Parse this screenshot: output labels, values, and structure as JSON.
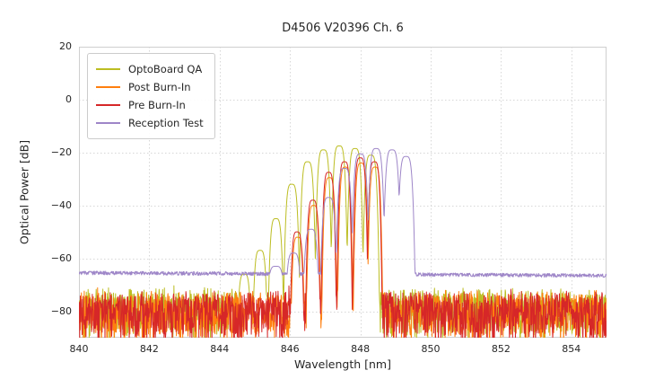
{
  "chart_data": {
    "type": "line",
    "title": "D4506 V20396 Ch. 6",
    "xlabel": "Wavelength [nm]",
    "ylabel": "Optical Power [dB]",
    "xlim": [
      840,
      855
    ],
    "ylim": [
      -90,
      20
    ],
    "xticks": [
      840,
      842,
      844,
      846,
      848,
      850,
      852,
      854
    ],
    "xtick_labels": [
      "840",
      "842",
      "844",
      "846",
      "848",
      "850",
      "852",
      "854"
    ],
    "yticks": [
      20,
      0,
      -20,
      -40,
      -60,
      -80
    ],
    "ytick_labels": [
      "20",
      "0",
      "−20",
      "−40",
      "−60",
      "−80"
    ],
    "grid": true,
    "grid_style": "dotted",
    "legend_position": "upper left",
    "mode_dip_dB": 25,
    "sample_step_nm": 0.01,
    "series": [
      {
        "name": "OptoBoard QA",
        "color": "#bcbd22",
        "signal_band_nm": [
          844.5,
          848.6
        ],
        "peak_power_dB": -17.5,
        "noise_floor": {
          "base_dB": -73.5,
          "jitter_dB": 5,
          "spike_down_dB": 16
        },
        "peaks_nm_dB_width": [
          [
            844.7,
            -66.0,
            0.2
          ],
          [
            845.15,
            -57.0,
            0.2
          ],
          [
            845.6,
            -45.0,
            0.2
          ],
          [
            846.05,
            -32.0,
            0.2
          ],
          [
            846.5,
            -23.5,
            0.2
          ],
          [
            846.95,
            -19.0,
            0.2
          ],
          [
            847.4,
            -17.5,
            0.2
          ],
          [
            847.85,
            -18.5,
            0.2
          ],
          [
            848.3,
            -21.0,
            0.2
          ]
        ]
      },
      {
        "name": "Post Burn-In",
        "color": "#ff7f0e",
        "signal_band_nm": [
          846.0,
          848.6
        ],
        "peak_power_dB": -24,
        "noise_floor": {
          "base_dB": -74.5,
          "jitter_dB": 5,
          "spike_down_dB": 16
        },
        "peaks_nm_dB_width": [
          [
            846.22,
            -52.0,
            0.18
          ],
          [
            846.67,
            -40.0,
            0.18
          ],
          [
            847.12,
            -29.5,
            0.18
          ],
          [
            847.57,
            -25.5,
            0.18
          ],
          [
            848.02,
            -24.0,
            0.18
          ],
          [
            848.42,
            -25.5,
            0.18
          ]
        ]
      },
      {
        "name": "Pre Burn-In",
        "color": "#d62728",
        "signal_band_nm": [
          846.0,
          848.6
        ],
        "peak_power_dB": -22,
        "noise_floor": {
          "base_dB": -74.5,
          "jitter_dB": 5,
          "spike_down_dB": 16
        },
        "peaks_nm_dB_width": [
          [
            846.2,
            -50.0,
            0.18
          ],
          [
            846.65,
            -38.0,
            0.18
          ],
          [
            847.1,
            -27.5,
            0.18
          ],
          [
            847.55,
            -23.5,
            0.18
          ],
          [
            848.0,
            -22.0,
            0.18
          ],
          [
            848.4,
            -23.5,
            0.18
          ]
        ]
      },
      {
        "name": "Reception Test",
        "color": "#9e86c8",
        "signal_band_nm": [
          845.4,
          849.6
        ],
        "peak_power_dB": -18.5,
        "noise_floor": {
          "base_dB": -66,
          "jitter_dB": 1.4,
          "slope_dB_per_nm": -0.07
        },
        "peaks_nm_dB_width": [
          [
            845.6,
            -63.0,
            0.3
          ],
          [
            846.1,
            -58.0,
            0.24
          ],
          [
            846.6,
            -49.0,
            0.22
          ],
          [
            847.1,
            -37.0,
            0.22
          ],
          [
            847.55,
            -26.0,
            0.22
          ],
          [
            848.0,
            -20.5,
            0.22
          ],
          [
            848.45,
            -18.5,
            0.22
          ],
          [
            848.9,
            -19.0,
            0.22
          ],
          [
            849.3,
            -21.5,
            0.22
          ]
        ]
      }
    ]
  }
}
